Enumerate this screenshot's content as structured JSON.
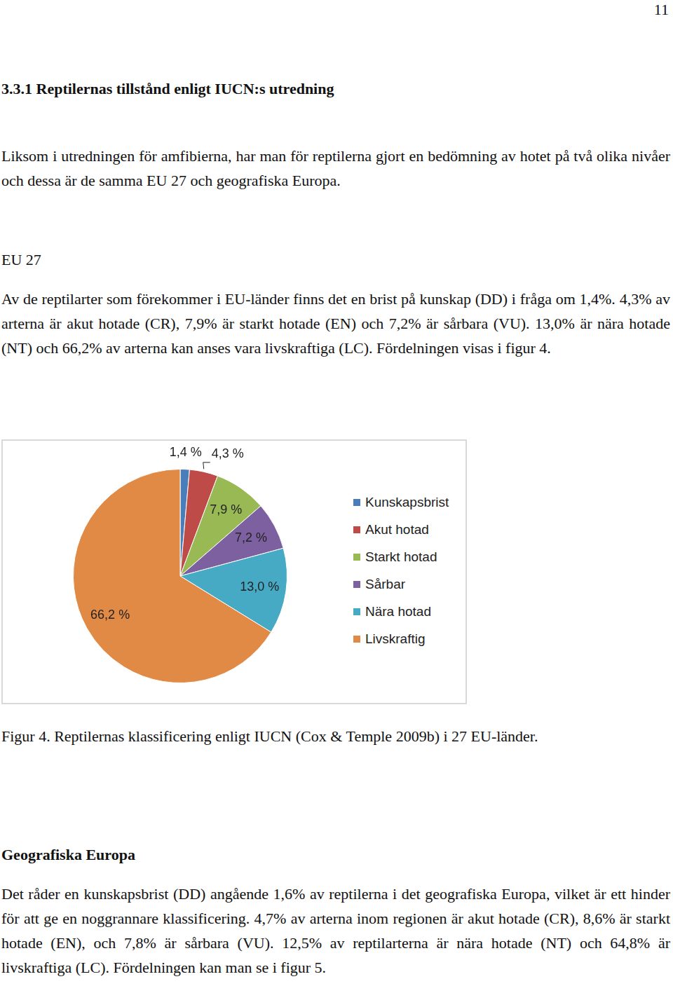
{
  "page_number": "11",
  "heading": "3.3.1 Reptilernas tillstånd enligt IUCN:s utredning",
  "intro": "Liksom i utredningen för amfibierna, har man för reptilerna gjort en bedömning av hotet på två olika nivåer och dessa är de samma EU 27 och geografiska Europa.",
  "section1": {
    "title": "EU 27",
    "text": "Av de reptilarter som förekommer i EU-länder finns det en brist på kunskap (DD) i fråga om 1,4%. 4,3% av arterna är akut hotade (CR), 7,9% är starkt hotade (EN) och 7,2% är sårbara (VU). 13,0% är nära hotade (NT) och 66,2% av arterna kan anses vara livskraftiga (LC). Fördelningen visas i figur 4."
  },
  "chart_data": {
    "type": "pie",
    "categories": [
      "Kunskapsbrist",
      "Akut hotad",
      "Starkt hotad",
      "Sårbar",
      "Nära hotad",
      "Livskraftig"
    ],
    "values": [
      1.4,
      4.3,
      7.9,
      7.2,
      13.0,
      66.2
    ],
    "value_labels": [
      "1,4 %",
      "4,3 %",
      "7,9 %",
      "7,2 %",
      "13,0 %",
      "66,2 %"
    ],
    "colors": [
      "#4a7ebb",
      "#be4b48",
      "#98b954",
      "#7d60a0",
      "#46aac5",
      "#e08a45"
    ],
    "data_labels": true,
    "legend": "right"
  },
  "caption": "Figur 4. Reptilernas klassificering enligt IUCN (Cox & Temple 2009b) i 27 EU-länder.",
  "section2": {
    "title": "Geografiska Europa",
    "text": "Det råder en kunskapsbrist (DD) angående 1,6% av reptilerna i det geografiska Europa, vilket är ett hinder för att ge en noggrannare klassificering. 4,7% av arterna inom regionen är akut hotade (CR), 8,6% är starkt hotade (EN), och 7,8% är sårbara (VU). 12,5% av reptilarterna är nära hotade (NT) och 64,8% är livskraftiga (LC). Fördelningen kan man se i figur 5."
  }
}
